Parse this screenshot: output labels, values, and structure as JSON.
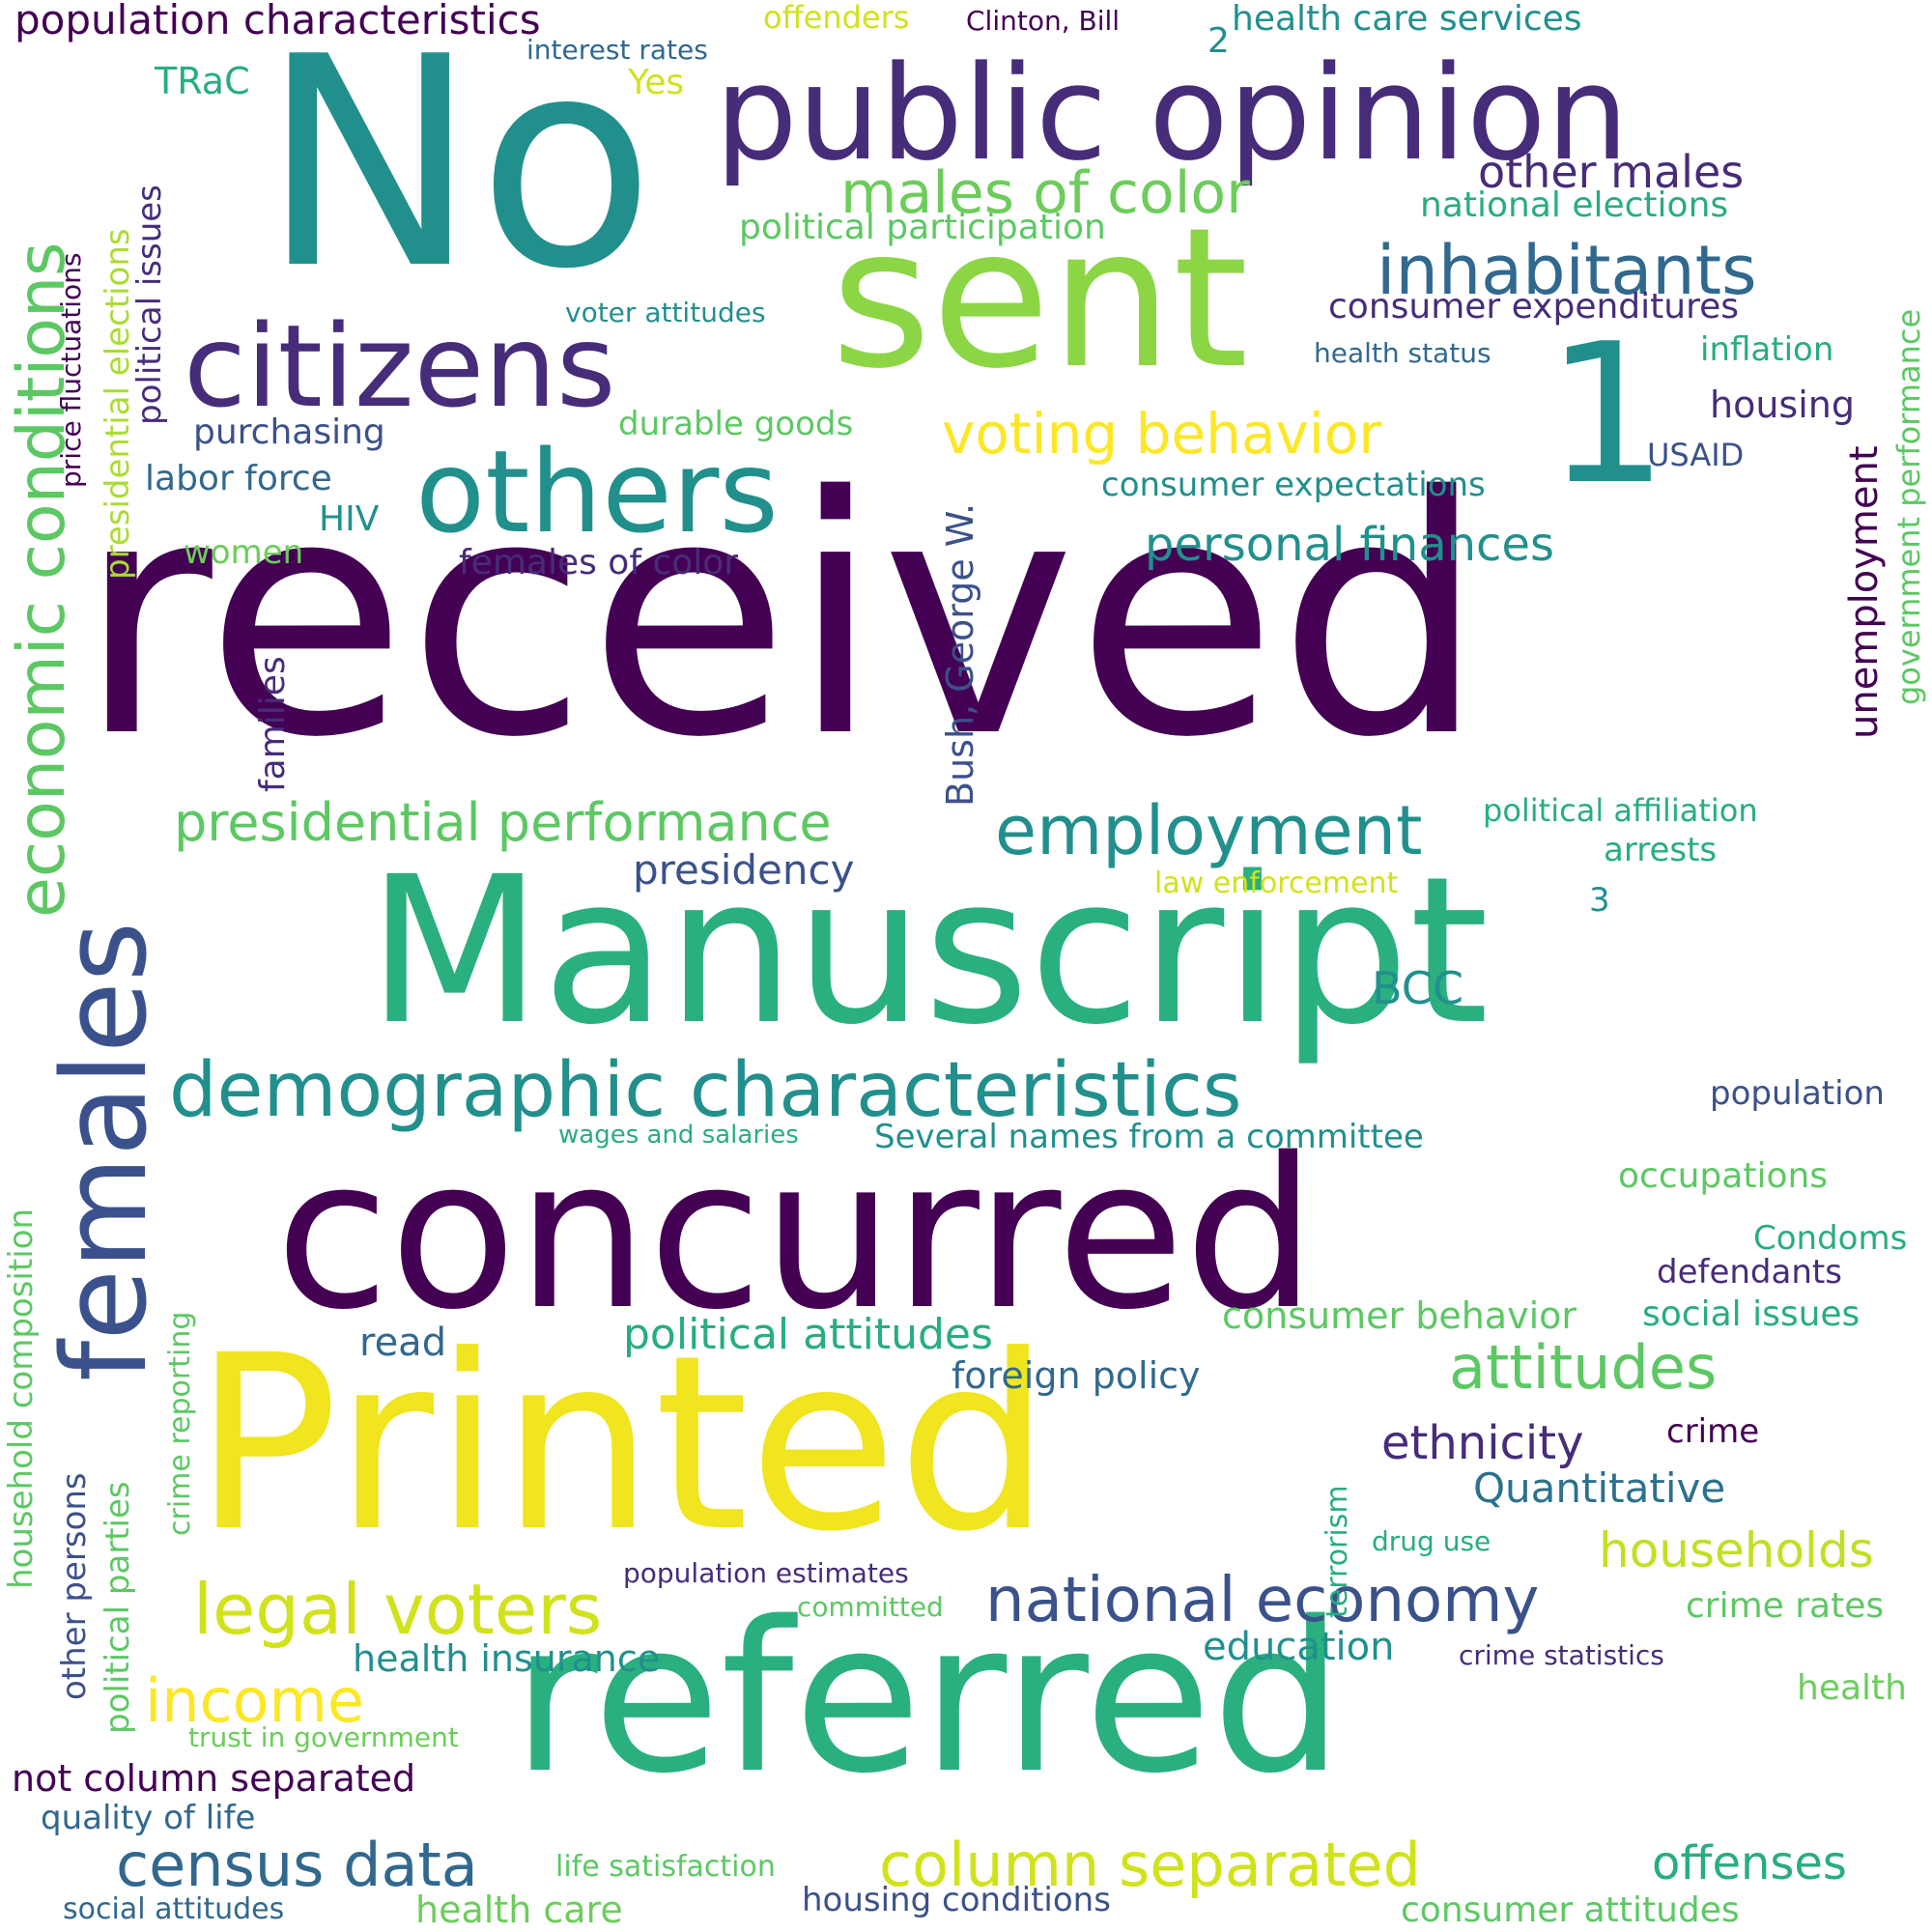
{
  "palette": {
    "dark_purple": "#440154",
    "purple": "#472c7a",
    "indigo": "#3b518b",
    "blue": "#2c718e",
    "teal": "#21908d",
    "green": "#27ad81",
    "light_green": "#5cc863",
    "lime": "#aadc32",
    "yellow": "#fde725"
  },
  "words": [
    "received",
    "No",
    "Manuscript",
    "concurred",
    "Printed",
    "referred",
    "sent",
    "public opinion",
    "citizens",
    "others",
    "1",
    "females",
    "demographic characteristics",
    "economic conditions",
    "inhabitants",
    "males of color",
    "voting behavior",
    "employment",
    "presidential performance",
    "national economy",
    "legal voters",
    "census data",
    "column separated",
    "attitudes",
    "income",
    "personal finances",
    "political attitudes",
    "households",
    "ethnicity",
    "offenses",
    "other males",
    "population characteristics",
    "consumer expenditures",
    "political participation",
    "national elections",
    "health care services",
    "Clinton, Bill",
    "offenders",
    "interest rates",
    "2",
    "TRaC",
    "Yes",
    "voter attitudes",
    "health status",
    "inflation",
    "purchasing",
    "durable goods",
    "housing",
    "labor force",
    "consumer expectations",
    "USAID",
    "HIV",
    "women",
    "females of color",
    "Bush, George W.",
    "families",
    "price fluctuations",
    "presidential elections",
    "political issues",
    "unemployment",
    "government performance",
    "political affiliation",
    "arrests",
    "presidency",
    "law enforcement",
    "3",
    "BCC",
    "population",
    "Several names from a committee",
    "wages and salaries",
    "occupations",
    "Condoms",
    "defendants",
    "consumer behavior",
    "social issues",
    "read",
    "foreign policy",
    "crime",
    "Quantitative",
    "drug use",
    "terrorism",
    "population estimates",
    "committed",
    "crime rates",
    "education",
    "crime statistics",
    "health insurance",
    "health",
    "trust in government",
    "not column separated",
    "quality of life",
    "life satisfaction",
    "social attitudes",
    "health care",
    "housing conditions",
    "consumer attitudes",
    "household composition",
    "crime reporting",
    "political parties",
    "other persons"
  ]
}
